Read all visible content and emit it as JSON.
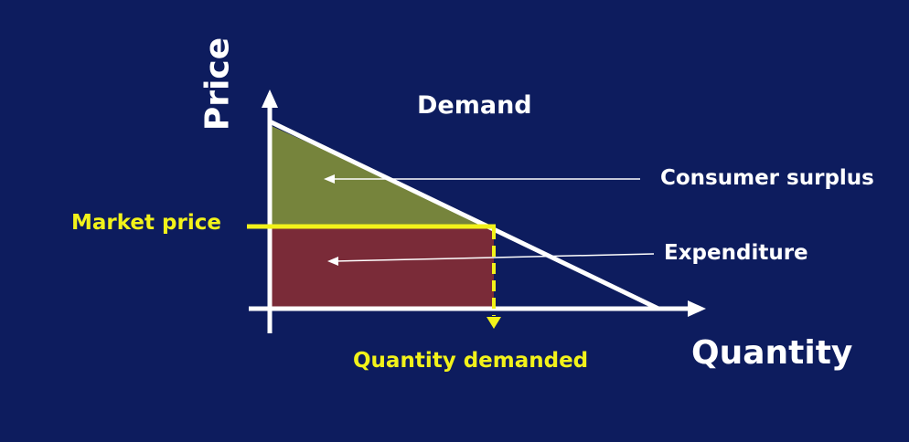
{
  "diagram": {
    "y_axis_label": "Price",
    "x_axis_label": "Quantity",
    "curve_label": "Demand",
    "market_price_label": "Market price",
    "quantity_demanded_label": "Quantity demanded",
    "consumer_surplus_label": "Consumer surplus",
    "expenditure_label": "Expenditure"
  },
  "colors": {
    "background": "#0d1c5e",
    "consumer_surplus_fill": "#7c8a3a",
    "expenditure_fill": "#7a2b38",
    "market_price_line": "#f2f21a",
    "axes": "#ffffff"
  }
}
